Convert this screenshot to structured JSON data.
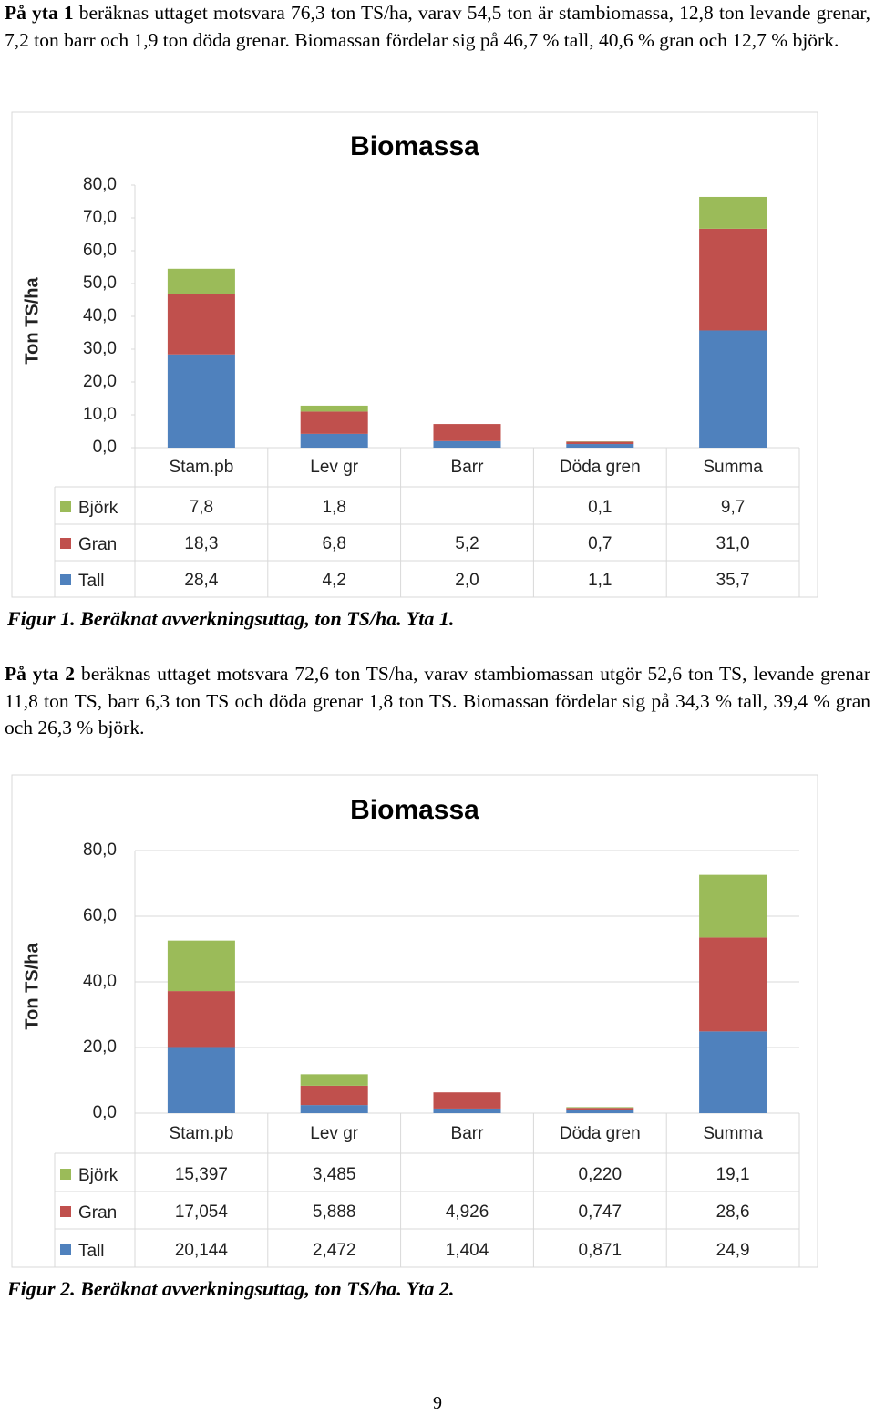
{
  "paragraphs": [
    {
      "lead": "På yta 1",
      "text": "beräknas uttaget motsvara 76,3 ton TS/ha, varav 54,5 ton är stambiomassa, 12,8 ton levande grenar, 7,2 ton barr och 1,9 ton döda grenar. Biomassan fördelar sig på 46,7 % tall, 40,6 % gran och 12,7 % björk."
    },
    {
      "lead": "På yta 2",
      "text": "beräknas uttaget motsvara 72,6 ton TS/ha, varav stambiomassan utgör 52,6 ton TS, levande grenar 11,8 ton TS, barr 6,3 ton TS och döda grenar 1,8 ton TS. Biomassan fördelar sig på 34,3 % tall, 39,4 % gran och 26,3 % björk."
    }
  ],
  "captions": [
    "Figur 1. Beräknat avverkningsuttag, ton TS/ha. Yta 1.",
    "Figur 2. Beräknat avverkningsuttag, ton TS/ha. Yta 2."
  ],
  "page_number": "9",
  "chart_data": [
    {
      "type": "stacked-bar",
      "title": "Biomassa",
      "y_label": "Ton TS/ha",
      "categories": [
        "Stam.pb",
        "Lev gr",
        "Barr",
        "Döda gren",
        "Summa"
      ],
      "series": [
        {
          "name": "Björk",
          "color": "#9bbb59",
          "values": [
            7.8,
            1.8,
            null,
            0.1,
            9.7
          ],
          "value_labels": [
            "7,8",
            "1,8",
            null,
            "0,1",
            "9,7"
          ]
        },
        {
          "name": "Gran",
          "color": "#c0504d",
          "values": [
            18.3,
            6.8,
            5.2,
            0.7,
            31.0
          ],
          "value_labels": [
            "18,3",
            "6,8",
            "5,2",
            "0,7",
            "31,0"
          ]
        },
        {
          "name": "Tall",
          "color": "#4f81bd",
          "values": [
            28.4,
            4.2,
            2.0,
            1.1,
            35.7
          ],
          "value_labels": [
            "28,4",
            "4,2",
            "2,0",
            "1,1",
            "35,7"
          ]
        }
      ],
      "ylim": [
        0,
        80
      ],
      "yticks": [
        {
          "value": 0,
          "label": "0,0"
        },
        {
          "value": 10,
          "label": "10,0"
        },
        {
          "value": 20,
          "label": "20,0"
        },
        {
          "value": 30,
          "label": "30,0"
        },
        {
          "value": 40,
          "label": "40,0"
        },
        {
          "value": 50,
          "label": "50,0"
        },
        {
          "value": 60,
          "label": "60,0"
        },
        {
          "value": 70,
          "label": "70,0"
        },
        {
          "value": 80,
          "label": "80,0"
        }
      ],
      "grid": false,
      "data_table": true
    },
    {
      "type": "stacked-bar",
      "title": "Biomassa",
      "y_label": "Ton TS/ha",
      "categories": [
        "Stam.pb",
        "Lev gr",
        "Barr",
        "Döda gren",
        "Summa"
      ],
      "series": [
        {
          "name": "Björk",
          "color": "#9bbb59",
          "values": [
            15.397,
            3.485,
            null,
            0.22,
            19.1
          ],
          "value_labels": [
            "15,397",
            "3,485",
            null,
            "0,220",
            "19,1"
          ]
        },
        {
          "name": "Gran",
          "color": "#c0504d",
          "values": [
            17.054,
            5.888,
            4.926,
            0.747,
            28.6
          ],
          "value_labels": [
            "17,054",
            "5,888",
            "4,926",
            "0,747",
            "28,6"
          ]
        },
        {
          "name": "Tall",
          "color": "#4f81bd",
          "values": [
            20.144,
            2.472,
            1.404,
            0.871,
            24.9
          ],
          "value_labels": [
            "20,144",
            "2,472",
            "1,404",
            "0,871",
            "24,9"
          ]
        }
      ],
      "ylim": [
        0,
        80
      ],
      "yticks": [
        {
          "value": 0,
          "label": "0,0"
        },
        {
          "value": 20,
          "label": "20,0"
        },
        {
          "value": 40,
          "label": "40,0"
        },
        {
          "value": 60,
          "label": "60,0"
        },
        {
          "value": 80,
          "label": "80,0"
        }
      ],
      "grid": true,
      "data_table": true
    }
  ]
}
